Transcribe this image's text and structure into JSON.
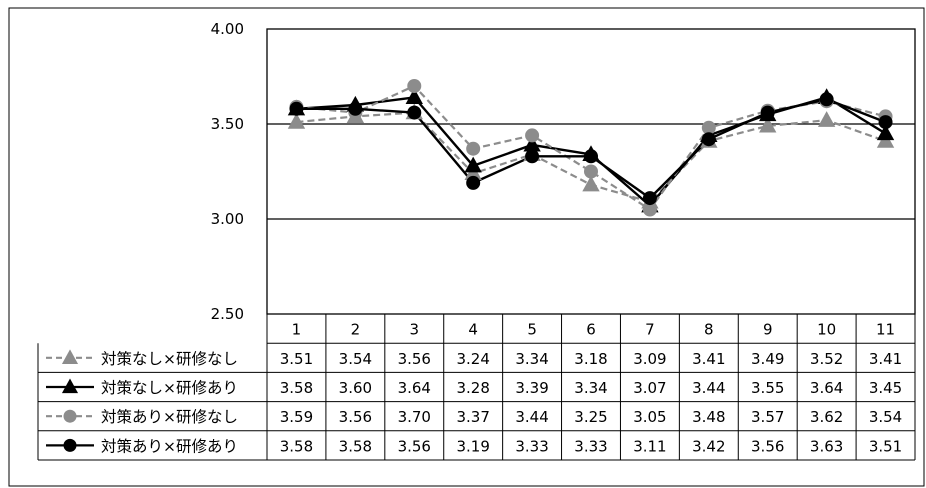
{
  "chart_data": {
    "type": "line",
    "title": "",
    "xlabel": "",
    "ylabel": "",
    "categories": [
      "1",
      "2",
      "3",
      "4",
      "5",
      "6",
      "7",
      "8",
      "9",
      "10",
      "11"
    ],
    "ylim": [
      2.5,
      4.0
    ],
    "yticks": [
      "2.50",
      "3.00",
      "3.50",
      "4.00"
    ],
    "grid": true,
    "legend": "data-table-rows",
    "series": [
      {
        "name": "対策なし×研修なし",
        "values": [
          3.51,
          3.54,
          3.56,
          3.24,
          3.34,
          3.18,
          3.09,
          3.41,
          3.49,
          3.52,
          3.41
        ],
        "value_labels": [
          "3.51",
          "3.54",
          "3.56",
          "3.24",
          "3.34",
          "3.18",
          "3.09",
          "3.41",
          "3.49",
          "3.52",
          "3.41"
        ],
        "color": "#8c8c8c",
        "dashed": true,
        "marker": "triangle"
      },
      {
        "name": "対策なし×研修あり",
        "values": [
          3.58,
          3.6,
          3.64,
          3.28,
          3.39,
          3.34,
          3.07,
          3.44,
          3.55,
          3.64,
          3.45
        ],
        "value_labels": [
          "3.58",
          "3.60",
          "3.64",
          "3.28",
          "3.39",
          "3.34",
          "3.07",
          "3.44",
          "3.55",
          "3.64",
          "3.45"
        ],
        "color": "#000000",
        "dashed": false,
        "marker": "triangle"
      },
      {
        "name": "対策あり×研修なし",
        "values": [
          3.59,
          3.56,
          3.7,
          3.37,
          3.44,
          3.25,
          3.05,
          3.48,
          3.57,
          3.62,
          3.54
        ],
        "value_labels": [
          "3.59",
          "3.56",
          "3.70",
          "3.37",
          "3.44",
          "3.25",
          "3.05",
          "3.48",
          "3.57",
          "3.62",
          "3.54"
        ],
        "color": "#8c8c8c",
        "dashed": true,
        "marker": "circle"
      },
      {
        "name": "対策あり×研修あり",
        "values": [
          3.58,
          3.58,
          3.56,
          3.19,
          3.33,
          3.33,
          3.11,
          3.42,
          3.56,
          3.63,
          3.51
        ],
        "value_labels": [
          "3.58",
          "3.58",
          "3.56",
          "3.19",
          "3.33",
          "3.33",
          "3.11",
          "3.42",
          "3.56",
          "3.63",
          "3.51"
        ],
        "color": "#000000",
        "dashed": false,
        "marker": "circle"
      }
    ]
  }
}
